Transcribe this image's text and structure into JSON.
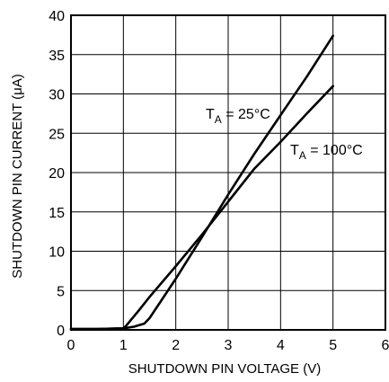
{
  "chart_data": {
    "type": "line",
    "xlabel": "SHUTDOWN PIN VOLTAGE (V)",
    "ylabel": "SHUTDOWN PIN CURRENT (μA)",
    "xlim": [
      0,
      6
    ],
    "ylim": [
      0,
      40
    ],
    "xticks": [
      0,
      1,
      2,
      3,
      4,
      5,
      6
    ],
    "yticks": [
      0,
      5,
      10,
      15,
      20,
      25,
      30,
      35,
      40
    ],
    "grid": true,
    "series": [
      {
        "name": "TA = 25°C",
        "label_main": "T",
        "label_sub": "A",
        "label_rest": " = 25°C",
        "x": [
          0,
          0.5,
          1.0,
          1.2,
          1.4,
          1.5,
          1.7,
          2.0,
          2.5,
          3.0,
          3.5,
          4.0,
          4.5,
          5.0
        ],
        "y": [
          0.1,
          0.1,
          0.2,
          0.4,
          0.8,
          1.5,
          3.5,
          6.5,
          11.8,
          17.2,
          22.4,
          27.3,
          32.2,
          37.4
        ]
      },
      {
        "name": "TA = 100°C",
        "label_main": "T",
        "label_sub": "A",
        "label_rest": " = 100°C",
        "x": [
          0,
          0.5,
          1.0,
          1.05,
          1.15,
          1.3,
          1.5,
          2.0,
          2.5,
          3.0,
          3.5,
          4.0,
          4.5,
          5.0
        ],
        "y": [
          0.1,
          0.1,
          0.2,
          0.5,
          1.3,
          2.5,
          4.2,
          8.1,
          12.1,
          16.3,
          20.5,
          23.9,
          27.5,
          31.0
        ]
      }
    ]
  }
}
